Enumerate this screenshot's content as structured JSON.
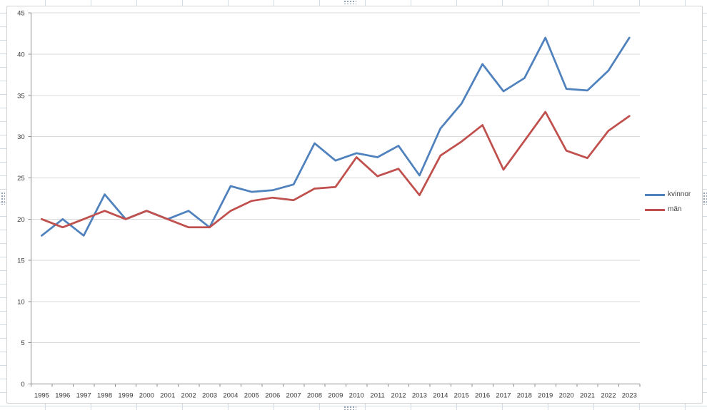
{
  "window": {
    "app_context": "spreadsheet-worksheet-with-embedded-chart"
  },
  "legend": {
    "position": "right"
  },
  "chart_data": {
    "type": "line",
    "title": "",
    "xlabel": "",
    "ylabel": "",
    "x": [
      "1995",
      "1996",
      "1997",
      "1998",
      "1999",
      "2000",
      "2001",
      "2002",
      "2003",
      "2004",
      "2005",
      "2006",
      "2007",
      "2008",
      "2009",
      "2010",
      "2011",
      "2012",
      "2013",
      "2014",
      "2015",
      "2016",
      "2017",
      "2018",
      "2019",
      "2020",
      "2021",
      "2022",
      "2023"
    ],
    "series": [
      {
        "name": "kvinnor",
        "color": "#4F81BD",
        "values": [
          18,
          20,
          18,
          23,
          20,
          21,
          20,
          21,
          19,
          24,
          23.3,
          23.5,
          24.2,
          29.2,
          27.1,
          28,
          27.5,
          28.9,
          25.3,
          31,
          34,
          38.8,
          35.5,
          37.1,
          42,
          35.8,
          35.6,
          38,
          42
        ]
      },
      {
        "name": "män",
        "color": "#C0504D",
        "values": [
          20,
          19,
          20,
          21,
          20,
          21,
          20,
          19,
          19,
          21,
          22.2,
          22.6,
          22.3,
          23.7,
          23.9,
          27.5,
          25.2,
          26.1,
          22.9,
          27.7,
          29.4,
          31.4,
          26,
          29.5,
          33,
          28.3,
          27.4,
          30.7,
          32.5
        ]
      }
    ],
    "ylim": [
      0,
      45
    ],
    "yticks": [
      0,
      5,
      10,
      15,
      20,
      25,
      30,
      35,
      40,
      45
    ],
    "grid": true,
    "legend_position": "right",
    "colors": {
      "gridline": "#d9d9d9",
      "axis": "#8e8e8e",
      "tick_label": "#3d3d3d",
      "plot_background": "#ffffff"
    }
  }
}
